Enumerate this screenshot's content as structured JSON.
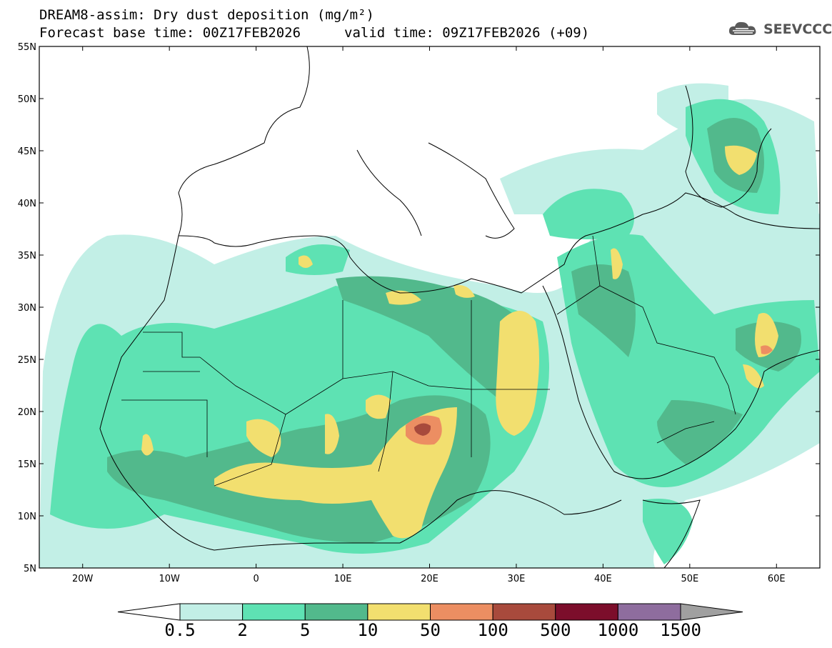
{
  "header": {
    "title_line1": "DREAM8-assim: Dry dust deposition (mg/m²)",
    "base_time": "Forecast base time: 00Z17FEB2026",
    "valid_time": "valid time: 09Z17FEB2026 (+09)",
    "logo_text": "SEEVCCC",
    "logo_icon": "cloud-icon"
  },
  "map": {
    "lat_labels": [
      "55N",
      "50N",
      "45N",
      "40N",
      "35N",
      "30N",
      "25N",
      "20N",
      "15N",
      "10N",
      "5N"
    ],
    "lon_labels": [
      "20W",
      "10W",
      "0",
      "10E",
      "20E",
      "30E",
      "40E",
      "50E",
      "60E"
    ],
    "lat_range": [
      5,
      55
    ],
    "lon_range": [
      -25,
      65
    ]
  },
  "colorbar": {
    "levels": [
      "0.5",
      "2",
      "5",
      "10",
      "50",
      "100",
      "500",
      "1000",
      "1500"
    ],
    "colors": [
      "#ffffff",
      "#c2efe6",
      "#5ee2b3",
      "#52b98c",
      "#f2df6f",
      "#ec8e62",
      "#a84a3c",
      "#7c0e2b",
      "#8e6d9e",
      "#a0a0a0"
    ]
  }
}
